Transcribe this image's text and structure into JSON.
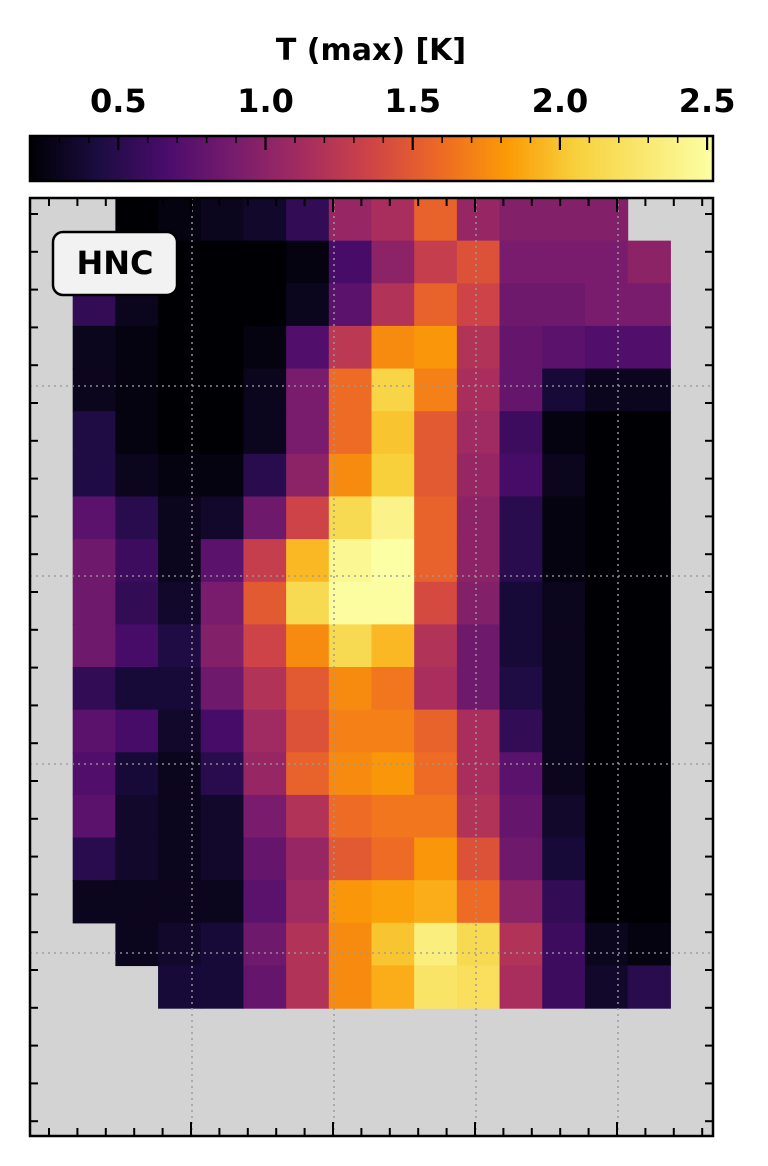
{
  "chart_data": {
    "type": "heatmap",
    "colorbar": {
      "title": "T (max) [K]",
      "range": [
        0.2,
        2.52
      ],
      "tick_values": [
        0.5,
        1.0,
        1.5,
        2.0,
        2.5
      ],
      "tick_labels": [
        "0.5",
        "1.0",
        "1.5",
        "2.0",
        "2.5"
      ],
      "colormap": "inferno"
    },
    "annotation": "HNC",
    "background_color": "#d3d3d3",
    "grid": true,
    "grid_columns": 16,
    "grid_rows": 22,
    "cells": [
      [
        null,
        null,
        0.2,
        0.25,
        0.3,
        0.35,
        0.55,
        1.05,
        1.15,
        1.55,
        1.05,
        0.95,
        0.95,
        0.95,
        null,
        null
      ],
      [
        null,
        0.6,
        0.3,
        0.2,
        0.2,
        0.2,
        0.25,
        0.65,
        1.0,
        1.3,
        1.45,
        0.9,
        0.9,
        0.9,
        1.0,
        null
      ],
      [
        null,
        0.55,
        0.3,
        0.2,
        0.2,
        0.2,
        0.3,
        0.75,
        1.2,
        1.55,
        1.35,
        0.85,
        0.85,
        0.9,
        0.9,
        null
      ],
      [
        null,
        0.3,
        0.25,
        0.2,
        0.2,
        0.25,
        0.7,
        1.25,
        1.75,
        1.8,
        1.2,
        0.8,
        0.75,
        0.7,
        0.7,
        null
      ],
      [
        null,
        0.3,
        0.25,
        0.2,
        0.2,
        0.3,
        0.9,
        1.6,
        2.1,
        1.7,
        1.15,
        0.8,
        0.4,
        0.3,
        0.3,
        null
      ],
      [
        null,
        0.45,
        0.25,
        0.2,
        0.2,
        0.3,
        0.9,
        1.6,
        2.0,
        1.5,
        1.1,
        0.6,
        0.25,
        0.2,
        0.2,
        null
      ],
      [
        null,
        0.45,
        0.3,
        0.25,
        0.25,
        0.5,
        1.0,
        1.75,
        2.05,
        1.5,
        1.05,
        0.65,
        0.3,
        0.2,
        0.2,
        null
      ],
      [
        null,
        0.75,
        0.5,
        0.3,
        0.35,
        0.85,
        1.35,
        2.15,
        2.4,
        1.55,
        1.0,
        0.5,
        0.25,
        0.2,
        0.2,
        null
      ],
      [
        null,
        0.85,
        0.6,
        0.3,
        0.75,
        1.3,
        1.95,
        2.45,
        2.52,
        1.55,
        1.0,
        0.5,
        0.25,
        0.2,
        0.2,
        null
      ],
      [
        null,
        0.85,
        0.55,
        0.35,
        0.9,
        1.5,
        2.15,
        2.5,
        2.5,
        1.4,
        0.95,
        0.4,
        0.3,
        0.2,
        0.2,
        null
      ],
      [
        null,
        0.85,
        0.65,
        0.45,
        0.95,
        1.35,
        1.75,
        2.15,
        1.95,
        1.2,
        0.85,
        0.4,
        0.3,
        0.2,
        0.2,
        null
      ],
      [
        null,
        0.55,
        0.4,
        0.4,
        0.85,
        1.2,
        1.5,
        1.75,
        1.65,
        1.15,
        0.85,
        0.45,
        0.3,
        0.2,
        0.2,
        null
      ],
      [
        null,
        0.75,
        0.65,
        0.35,
        0.65,
        1.1,
        1.45,
        1.7,
        1.7,
        1.55,
        1.15,
        0.55,
        0.3,
        0.2,
        0.2,
        null
      ],
      [
        null,
        0.7,
        0.4,
        0.3,
        0.5,
        1.05,
        1.55,
        1.75,
        1.8,
        1.6,
        1.15,
        0.75,
        0.3,
        0.2,
        0.2,
        null
      ],
      [
        null,
        0.75,
        0.35,
        0.3,
        0.35,
        0.9,
        1.2,
        1.6,
        1.65,
        1.65,
        1.2,
        0.8,
        0.35,
        0.2,
        0.2,
        null
      ],
      [
        null,
        0.5,
        0.35,
        0.3,
        0.35,
        0.8,
        1.05,
        1.5,
        1.6,
        1.8,
        1.45,
        0.85,
        0.4,
        0.2,
        0.2,
        null
      ],
      [
        null,
        0.3,
        0.3,
        0.3,
        0.3,
        0.75,
        1.1,
        1.8,
        1.85,
        1.9,
        1.6,
        1.0,
        0.55,
        0.2,
        0.2,
        null
      ],
      [
        null,
        null,
        0.3,
        0.35,
        0.4,
        0.85,
        1.2,
        1.75,
        2.0,
        2.35,
        2.15,
        1.2,
        0.6,
        0.3,
        0.25,
        null
      ],
      [
        null,
        null,
        null,
        0.4,
        0.4,
        0.8,
        1.2,
        1.75,
        1.9,
        2.25,
        2.2,
        1.15,
        0.6,
        0.35,
        0.5,
        null
      ],
      [
        null,
        null,
        null,
        null,
        null,
        null,
        null,
        null,
        null,
        null,
        null,
        null,
        null,
        null,
        null,
        null
      ],
      [
        null,
        null,
        null,
        null,
        null,
        null,
        null,
        null,
        null,
        null,
        null,
        null,
        null,
        null,
        null,
        null
      ],
      [
        null,
        null,
        null,
        null,
        null,
        null,
        null,
        null,
        null,
        null,
        null,
        null,
        null,
        null,
        null,
        null
      ]
    ]
  }
}
